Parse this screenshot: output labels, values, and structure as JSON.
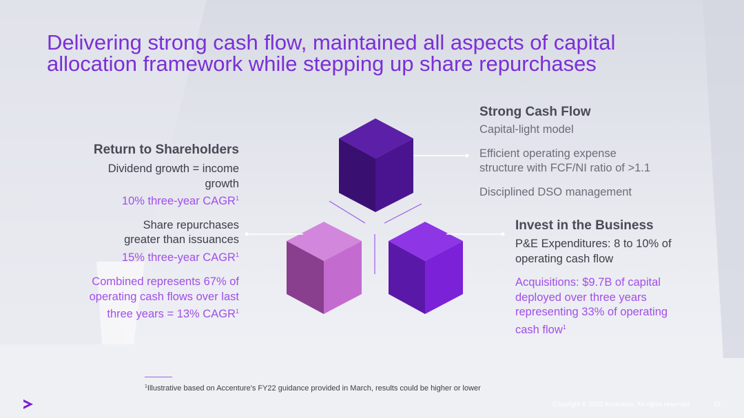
{
  "title": {
    "line1": "Delivering strong cash flow, maintained all aspects of capital",
    "line2": "allocation framework while stepping up share repurchases"
  },
  "strong_cash_flow": {
    "heading": "Strong Cash Flow",
    "sub": "Capital-light model",
    "point1_line1": "Efficient operating expense",
    "point1_line2": "structure with FCF/NI ratio of >1.1",
    "point2": "Disciplined DSO management"
  },
  "return_to_shareholders": {
    "heading": "Return to Shareholders",
    "div_line1": "Dividend growth = income",
    "div_line2": "growth",
    "div_cagr": "10% three-year CAGR",
    "rep_line1": "Share repurchases",
    "rep_line2": "greater than issuances",
    "rep_cagr": "15% three-year CAGR",
    "comb_line1": "Combined represents 67% of",
    "comb_line2": "operating cash flows over last",
    "comb_line3": "three years = 13% CAGR",
    "footnote_mark": "1"
  },
  "invest_in_business": {
    "heading": "Invest in the Business",
    "pe_line1": "P&E Expenditures: 8 to 10% of",
    "pe_line2": "operating cash flow",
    "acq_line1": "Acquisitions: $9.7B of capital",
    "acq_line2": "deployed over three years",
    "acq_line3": "representing 33% of operating",
    "acq_line4": "cash flow",
    "footnote_mark": "1"
  },
  "footnote": {
    "mark": "1",
    "text": "Illustrative based on Accenture's FY22 guidance provided in March, results could be higher or lower"
  },
  "footer": {
    "copyright": "Copyright © 2022 Accenture. All rights reserved.",
    "page": "13",
    "logo_icon": "accenture-chevron-icon"
  },
  "colors": {
    "title": "#7a2fd6",
    "purple_text": "#a14ee8",
    "cube_dark": "#4a1490",
    "cube_pink": "#c46bd0",
    "cube_violet": "#7b22d8"
  }
}
